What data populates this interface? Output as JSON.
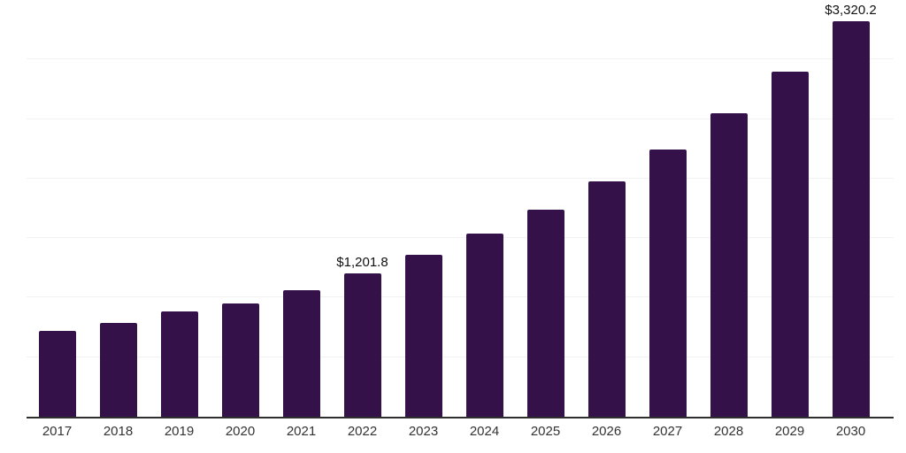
{
  "chart_data": {
    "type": "bar",
    "title": "",
    "xlabel": "",
    "ylabel": "",
    "categories": [
      "2017",
      "2018",
      "2019",
      "2020",
      "2021",
      "2022",
      "2023",
      "2024",
      "2025",
      "2026",
      "2027",
      "2028",
      "2029",
      "2030"
    ],
    "values": [
      720,
      790,
      885,
      950,
      1060,
      1201.8,
      1360,
      1540,
      1740,
      1975,
      2245,
      2550,
      2900,
      3320.2
    ],
    "data_labels": [
      {
        "category_index": 5,
        "text": "$1,201.8"
      },
      {
        "category_index": 13,
        "text": "$3,320.2"
      }
    ],
    "ylim": [
      0,
      3500
    ],
    "gridline_values": [
      500,
      1000,
      1500,
      2000,
      2500,
      3000,
      3500
    ],
    "grid": "horizontal-only",
    "legend_position": "none",
    "bar_color": "#35114a",
    "axis_line_color": "#2e2e2e",
    "gridline_color": "#f2f2f2",
    "tick_label_color": "#333333",
    "data_label_color": "#111111"
  }
}
